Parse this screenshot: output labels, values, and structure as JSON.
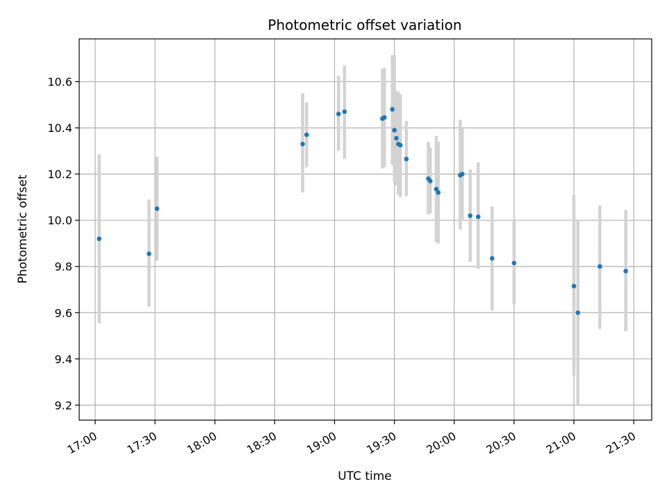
{
  "chart_data": {
    "type": "scatter",
    "title": "Photometric offset variation",
    "xlabel": "UTC time",
    "ylabel": "Photometric offset",
    "xlim": [
      "16:52",
      "21:39"
    ],
    "ylim": [
      9.135,
      10.785
    ],
    "x_ticks": [
      "17:00",
      "17:30",
      "18:00",
      "18:30",
      "19:00",
      "19:30",
      "20:00",
      "20:30",
      "21:00",
      "21:30"
    ],
    "y_ticks": [
      9.2,
      9.4,
      9.6,
      9.8,
      10.0,
      10.2,
      10.4,
      10.6
    ],
    "y_tick_labels": [
      "9.2",
      "9.4",
      "9.6",
      "9.8",
      "10.0",
      "10.2",
      "10.4",
      "10.6"
    ],
    "grid": true,
    "marker_color": "#1f77b4",
    "errorbar_color": "#d3d3d3",
    "series": [
      {
        "points": [
          {
            "x": "17:02",
            "y": 9.92,
            "ylow": 9.555,
            "yhigh": 10.285
          },
          {
            "x": "17:27",
            "y": 9.855,
            "ylow": 9.625,
            "yhigh": 10.09
          },
          {
            "x": "17:31",
            "y": 10.05,
            "ylow": 9.825,
            "yhigh": 10.275
          },
          {
            "x": "18:44",
            "y": 10.33,
            "ylow": 10.12,
            "yhigh": 10.55
          },
          {
            "x": "18:46",
            "y": 10.37,
            "ylow": 10.23,
            "yhigh": 10.51
          },
          {
            "x": "19:02",
            "y": 10.46,
            "ylow": 10.3,
            "yhigh": 10.625
          },
          {
            "x": "19:05",
            "y": 10.47,
            "ylow": 10.265,
            "yhigh": 10.67
          },
          {
            "x": "19:24",
            "y": 10.44,
            "ylow": 10.225,
            "yhigh": 10.655
          },
          {
            "x": "19:25",
            "y": 10.445,
            "ylow": 10.23,
            "yhigh": 10.66
          },
          {
            "x": "19:29",
            "y": 10.48,
            "ylow": 10.24,
            "yhigh": 10.715
          },
          {
            "x": "19:30",
            "y": 10.39,
            "ylow": 10.165,
            "yhigh": 10.715
          },
          {
            "x": "19:31",
            "y": 10.355,
            "ylow": 10.15,
            "yhigh": 10.56
          },
          {
            "x": "19:32",
            "y": 10.33,
            "ylow": 10.11,
            "yhigh": 10.555
          },
          {
            "x": "19:33",
            "y": 10.325,
            "ylow": 10.1,
            "yhigh": 10.545
          },
          {
            "x": "19:36",
            "y": 10.265,
            "ylow": 10.105,
            "yhigh": 10.43
          },
          {
            "x": "19:47",
            "y": 10.18,
            "ylow": 10.025,
            "yhigh": 10.34
          },
          {
            "x": "19:48",
            "y": 10.17,
            "ylow": 10.03,
            "yhigh": 10.315
          },
          {
            "x": "19:51",
            "y": 10.135,
            "ylow": 9.905,
            "yhigh": 10.365
          },
          {
            "x": "19:52",
            "y": 10.12,
            "ylow": 9.9,
            "yhigh": 10.34
          },
          {
            "x": "20:03",
            "y": 10.195,
            "ylow": 9.96,
            "yhigh": 10.435
          },
          {
            "x": "20:04",
            "y": 10.2,
            "ylow": 10.0,
            "yhigh": 10.4
          },
          {
            "x": "20:08",
            "y": 10.02,
            "ylow": 9.82,
            "yhigh": 10.22
          },
          {
            "x": "20:12",
            "y": 10.015,
            "ylow": 9.79,
            "yhigh": 10.25
          },
          {
            "x": "20:19",
            "y": 9.835,
            "ylow": 9.61,
            "yhigh": 10.06
          },
          {
            "x": "20:30",
            "y": 9.815,
            "ylow": 9.635,
            "yhigh": 10.0
          },
          {
            "x": "21:00",
            "y": 9.715,
            "ylow": 9.325,
            "yhigh": 10.11
          },
          {
            "x": "21:02",
            "y": 9.6,
            "ylow": 9.2,
            "yhigh": 10.0
          },
          {
            "x": "21:13",
            "y": 9.8,
            "ylow": 9.53,
            "yhigh": 10.065
          },
          {
            "x": "21:26",
            "y": 9.78,
            "ylow": 9.52,
            "yhigh": 10.045
          }
        ]
      }
    ]
  }
}
